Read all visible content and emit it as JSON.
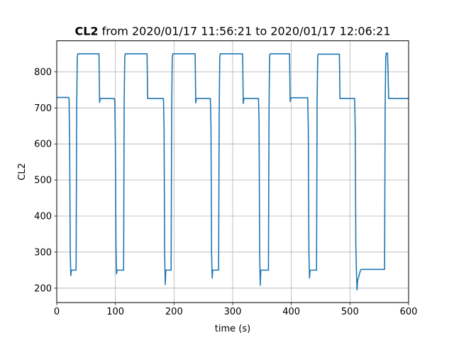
{
  "chart_data": {
    "type": "line",
    "title_bold": "CL2",
    "title_rest": " from 2020/01/17 11:56:21 to 2020/01/17 12:06:21",
    "xlabel": "time (s)",
    "ylabel": "CL2",
    "xlim": [
      0,
      600
    ],
    "ylim": [
      160,
      886
    ],
    "xticks": [
      0,
      100,
      200,
      300,
      400,
      500,
      600
    ],
    "yticks": [
      200,
      300,
      400,
      500,
      600,
      700,
      800
    ],
    "grid": true,
    "line_color": "#1f77b4",
    "series": [
      {
        "x": [
          0,
          20,
          21,
          22,
          23,
          24,
          25,
          33,
          34,
          35,
          36,
          72,
          73,
          74,
          75,
          98,
          99,
          100,
          101,
          102,
          103,
          114,
          115,
          116,
          117,
          154,
          155,
          156,
          157,
          182,
          183,
          184,
          185,
          186,
          187,
          195,
          196,
          197,
          198,
          236,
          237,
          238,
          239,
          262,
          263,
          264,
          265,
          266,
          267,
          276,
          277,
          278,
          279,
          317,
          318,
          319,
          320,
          344,
          345,
          346,
          347,
          348,
          349,
          361,
          362,
          363,
          364,
          397,
          398,
          399,
          400,
          428,
          429,
          430,
          431,
          432,
          433,
          443,
          444,
          445,
          446,
          482,
          483,
          484,
          485,
          508,
          509,
          510,
          511,
          512,
          513,
          518,
          519,
          520,
          521,
          559,
          560,
          561,
          562,
          563,
          564,
          565,
          566,
          567,
          600
        ],
        "y": [
          729,
          729,
          727,
          600,
          300,
          235,
          250,
          250,
          700,
          840,
          850,
          850,
          715,
          724,
          726,
          726,
          718,
          600,
          320,
          240,
          250,
          250,
          720,
          840,
          850,
          850,
          726,
          726,
          726,
          726,
          640,
          300,
          210,
          250,
          250,
          250,
          700,
          840,
          850,
          850,
          714,
          724,
          726,
          726,
          650,
          300,
          228,
          250,
          250,
          250,
          690,
          840,
          850,
          850,
          712,
          724,
          726,
          726,
          660,
          300,
          208,
          250,
          250,
          250,
          700,
          845,
          850,
          850,
          718,
          727,
          728,
          728,
          640,
          300,
          228,
          248,
          250,
          250,
          720,
          845,
          849,
          849,
          726,
          726,
          726,
          726,
          640,
          320,
          250,
          195,
          220,
          250,
          252,
          252,
          252,
          252,
          700,
          840,
          852,
          852,
          852,
          800,
          726,
          726,
          726
        ]
      }
    ]
  }
}
